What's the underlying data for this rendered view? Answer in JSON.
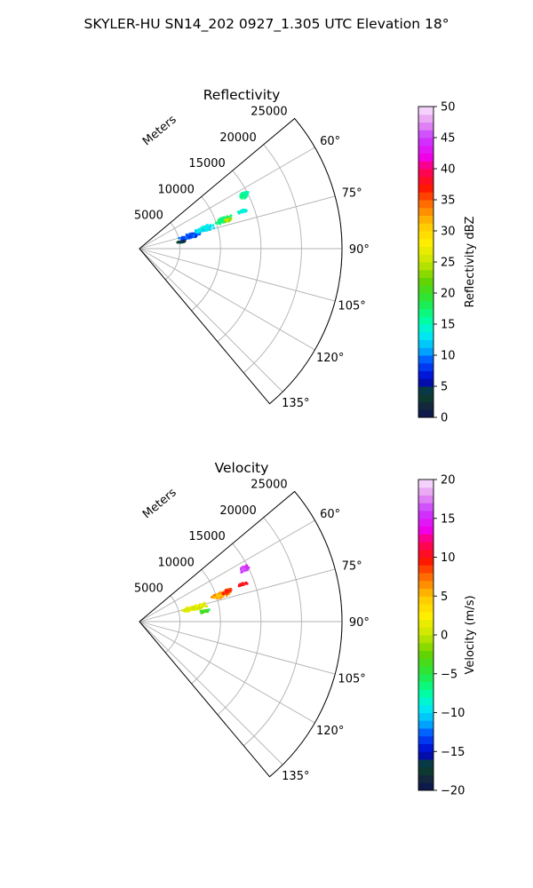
{
  "figure": {
    "title": "SKYLER-HU  SN14_202  0927_1.305 UTC Elevation 18°"
  },
  "chart_data": [
    {
      "type": "heatmap",
      "subtype": "polar-sector",
      "title": "Reflectivity",
      "radial_label": "Meters",
      "radial_ticks": [
        5000,
        10000,
        15000,
        20000,
        25000
      ],
      "radial_tick_labels": [
        "5000",
        "10000",
        "15000",
        "20000",
        "25000"
      ],
      "r_range": [
        0,
        25000
      ],
      "theta_range": [
        50,
        140
      ],
      "theta_ticks": [
        60,
        75,
        90,
        105,
        120,
        135
      ],
      "theta_tick_labels": [
        "60°",
        "75°",
        "90°",
        "105°",
        "120°",
        "135°"
      ],
      "grid": true,
      "colorbar": {
        "label": "Reflectivity dBZ",
        "min": 0,
        "max": 50,
        "ticks": [
          0,
          5,
          10,
          15,
          20,
          25,
          30,
          35,
          40,
          45,
          50
        ],
        "tick_labels": [
          "0",
          "5",
          "10",
          "15",
          "20",
          "25",
          "30",
          "35",
          "40",
          "45",
          "50"
        ]
      },
      "echoes": [
        {
          "r": 6500,
          "theta": 76,
          "r_spread": 1500,
          "theta_spread": 3,
          "value": 9,
          "n": 100
        },
        {
          "r": 8500,
          "theta": 73,
          "r_spread": 1500,
          "theta_spread": 2.5,
          "value": 13,
          "n": 120
        },
        {
          "r": 11000,
          "theta": 71,
          "r_spread": 1200,
          "theta_spread": 2.2,
          "value": 17,
          "n": 110
        },
        {
          "r": 11500,
          "theta": 72,
          "r_spread": 600,
          "theta_spread": 1.2,
          "value": 24,
          "n": 40
        },
        {
          "r": 13500,
          "theta": 70,
          "r_spread": 800,
          "theta_spread": 1.0,
          "value": 14,
          "n": 25
        },
        {
          "r": 14500,
          "theta": 63,
          "r_spread": 700,
          "theta_spread": 1.6,
          "value": 16,
          "n": 70
        },
        {
          "r": 5200,
          "theta": 81,
          "r_spread": 700,
          "theta_spread": 1.5,
          "value": 4,
          "n": 35
        }
      ]
    },
    {
      "type": "heatmap",
      "subtype": "polar-sector",
      "title": "Velocity",
      "radial_label": "Meters",
      "radial_ticks": [
        5000,
        10000,
        15000,
        20000,
        25000
      ],
      "radial_tick_labels": [
        "5000",
        "10000",
        "15000",
        "20000",
        "25000"
      ],
      "r_range": [
        0,
        25000
      ],
      "theta_range": [
        50,
        140
      ],
      "theta_ticks": [
        60,
        75,
        90,
        105,
        120,
        135
      ],
      "theta_tick_labels": [
        "60°",
        "75°",
        "90°",
        "105°",
        "120°",
        "135°"
      ],
      "grid": true,
      "colorbar": {
        "label": "Velocity (m/s)",
        "min": -20,
        "max": 20,
        "ticks": [
          -20,
          -15,
          -10,
          -5,
          0,
          5,
          10,
          15,
          20
        ],
        "tick_labels": [
          "−20",
          "−15",
          "−10",
          "−5",
          "0",
          "5",
          "10",
          "15",
          "20"
        ]
      },
      "echoes": [
        {
          "r": 7000,
          "theta": 76,
          "r_spread": 1800,
          "theta_spread": 3,
          "value": 1,
          "n": 110
        },
        {
          "r": 8200,
          "theta": 81,
          "r_spread": 800,
          "theta_spread": 1.5,
          "value": -4,
          "n": 30
        },
        {
          "r": 10500,
          "theta": 72,
          "r_spread": 1400,
          "theta_spread": 2.2,
          "value": 6,
          "n": 120
        },
        {
          "r": 11500,
          "theta": 71,
          "r_spread": 800,
          "theta_spread": 1.5,
          "value": 9,
          "n": 50
        },
        {
          "r": 13500,
          "theta": 70,
          "r_spread": 800,
          "theta_spread": 1.0,
          "value": 10,
          "n": 25
        },
        {
          "r": 14500,
          "theta": 63,
          "r_spread": 700,
          "theta_spread": 1.6,
          "value": 16,
          "n": 70
        }
      ]
    }
  ]
}
